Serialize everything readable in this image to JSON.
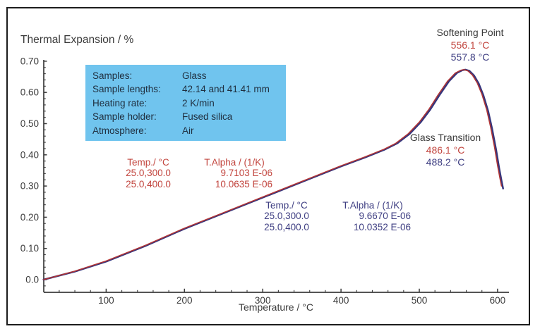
{
  "figure": {
    "title": "Thermal Expansion / %",
    "x_axis_title": "Temperature / °C"
  },
  "colors": {
    "axis": "#3b3b3b",
    "red_curve": "#b23434",
    "blue_curve": "#35357c",
    "red_text": "#c2453e",
    "blue_text": "#3e3e82",
    "info_box_bg": "#70c4ee",
    "frame_border": "#1c1c1c"
  },
  "info_box": {
    "rows": [
      {
        "label": "Samples:",
        "value": "Glass"
      },
      {
        "label": "Sample lengths:",
        "value": "42.14 and 41.41 mm"
      },
      {
        "label": "Heating rate:",
        "value": "2 K/min"
      },
      {
        "label": "Sample holder:",
        "value": "Fused silica"
      },
      {
        "label": "Atmosphere:",
        "value": "Air"
      }
    ]
  },
  "alpha_table_red": {
    "header": {
      "col1": "Temp./ °C",
      "col2": "T.Alpha / (1/K)"
    },
    "rows": [
      {
        "col1": "25.0,300.0",
        "col2": "9.7103 E-06"
      },
      {
        "col1": "25.0,400.0",
        "col2": "10.0635 E-06"
      }
    ]
  },
  "alpha_table_blue": {
    "header": {
      "col1": "Temp./ °C",
      "col2": "T.Alpha / (1/K)"
    },
    "rows": [
      {
        "col1": "25.0,300.0",
        "col2": "9.6670 E-06"
      },
      {
        "col1": "25.0,400.0",
        "col2": "10.0352 E-06"
      }
    ]
  },
  "annotations": {
    "softening": {
      "title": "Softening Point",
      "red_value": "556.1 °C",
      "blue_value": "557.8 °C"
    },
    "glass": {
      "title": "Glass Transition",
      "red_value": "486.1 °C",
      "blue_value": "488.2 °C"
    }
  },
  "chart_data": {
    "type": "line",
    "title": "Thermal Expansion / %",
    "xlabel": "Temperature / °C",
    "ylabel": "Thermal Expansion / %",
    "xlim": [
      20,
      615
    ],
    "ylim": [
      -0.04,
      0.7
    ],
    "grid": false,
    "legend": "none",
    "x_major_ticks": [
      100,
      200,
      300,
      400,
      500,
      600
    ],
    "x_minor_step": 20,
    "y_major_ticks": [
      0,
      0.1,
      0.2,
      0.3,
      0.4,
      0.5,
      0.6,
      0.7
    ],
    "y_tick_labels": [
      "0.0",
      "0.10",
      "0.20",
      "0.30",
      "0.40",
      "0.50",
      "0.60",
      "0.70"
    ],
    "y_minor_step": 0.02,
    "series": [
      {
        "name": "sample-2-blue",
        "color": "#35357c",
        "width": 2.5,
        "softening_point_c": 557.8,
        "glass_transition_c": 488.2,
        "points": [
          [
            20,
            0.0
          ],
          [
            60,
            0.026
          ],
          [
            100,
            0.058
          ],
          [
            150,
            0.108
          ],
          [
            200,
            0.163
          ],
          [
            250,
            0.213
          ],
          [
            300,
            0.263
          ],
          [
            350,
            0.313
          ],
          [
            400,
            0.363
          ],
          [
            430,
            0.391
          ],
          [
            455,
            0.416
          ],
          [
            472,
            0.437
          ],
          [
            488,
            0.468
          ],
          [
            502,
            0.505
          ],
          [
            514,
            0.545
          ],
          [
            526,
            0.592
          ],
          [
            538,
            0.636
          ],
          [
            548,
            0.662
          ],
          [
            555,
            0.671
          ],
          [
            559,
            0.673
          ],
          [
            564,
            0.669
          ],
          [
            570,
            0.654
          ],
          [
            576,
            0.628
          ],
          [
            582,
            0.59
          ],
          [
            588,
            0.54
          ],
          [
            593,
            0.484
          ],
          [
            598,
            0.418
          ],
          [
            602,
            0.358
          ],
          [
            605,
            0.318
          ],
          [
            607,
            0.292
          ]
        ]
      },
      {
        "name": "sample-1-red",
        "color": "#b23434",
        "width": 1.5,
        "softening_point_c": 556.1,
        "glass_transition_c": 486.1,
        "points": [
          [
            20,
            0.0
          ],
          [
            60,
            0.027
          ],
          [
            100,
            0.06
          ],
          [
            150,
            0.11
          ],
          [
            200,
            0.165
          ],
          [
            250,
            0.215
          ],
          [
            300,
            0.265
          ],
          [
            350,
            0.315
          ],
          [
            400,
            0.365
          ],
          [
            430,
            0.393
          ],
          [
            455,
            0.418
          ],
          [
            470,
            0.437
          ],
          [
            486,
            0.468
          ],
          [
            500,
            0.505
          ],
          [
            512,
            0.545
          ],
          [
            524,
            0.592
          ],
          [
            536,
            0.636
          ],
          [
            546,
            0.662
          ],
          [
            553,
            0.671
          ],
          [
            557,
            0.673
          ],
          [
            562,
            0.669
          ],
          [
            568,
            0.655
          ],
          [
            574,
            0.63
          ],
          [
            580,
            0.594
          ],
          [
            586,
            0.545
          ],
          [
            591,
            0.49
          ],
          [
            596,
            0.425
          ],
          [
            600,
            0.365
          ],
          [
            603,
            0.325
          ],
          [
            605,
            0.3
          ]
        ]
      }
    ]
  }
}
